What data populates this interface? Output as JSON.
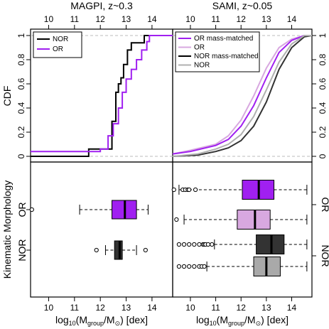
{
  "titles": {
    "magpi": "MAGPI, z~0.3",
    "sami": "SAMI, z~0.05"
  },
  "labels": {
    "cdf": "CDF",
    "kin": "Kinematic Morphology",
    "x_prefix": "log",
    "x_sub": "10",
    "x_mid": "(M",
    "x_sub2": "group",
    "x_sep": "/M",
    "x_sun": "⊙",
    "x_suffix": ") [dex]"
  },
  "categories": {
    "or": "OR",
    "nor": "NOR"
  },
  "legends": {
    "magpi": [
      "NOR",
      "OR"
    ],
    "sami": [
      "OR mass-matched",
      "OR",
      "NOR mass-matched",
      "NOR"
    ]
  },
  "colors": {
    "or": "#a020f0",
    "or_mm": "#d8a8e0",
    "nor": "#000000",
    "nor_mm": "#333333",
    "nor_sami": "#b0b0b0"
  },
  "chart_data": [
    {
      "type": "line",
      "panel": "magpi-cdf",
      "xlim": [
        9.3,
        14.8
      ],
      "ylim": [
        0,
        1
      ],
      "x_ticks": [
        10,
        11,
        12,
        13,
        14
      ],
      "y_ticks": [
        0,
        0.2,
        0.4,
        0.6,
        0.8,
        1
      ],
      "series": [
        {
          "name": "NOR",
          "color": "#000000",
          "x": [
            9.3,
            11.55,
            11.55,
            12.45,
            12.6,
            12.7,
            12.8,
            12.9,
            13.05,
            13.2,
            13.4,
            13.65,
            13.7,
            14.8
          ],
          "y": [
            0,
            0,
            0.06,
            0.29,
            0.53,
            0.6,
            0.65,
            0.76,
            0.88,
            0.94,
            0.94,
            0.94,
            1.0,
            1.0
          ]
        },
        {
          "name": "OR",
          "color": "#a020f0",
          "x": [
            9.3,
            12.0,
            12.3,
            12.5,
            12.7,
            12.85,
            13.0,
            13.2,
            13.4,
            13.6,
            13.8,
            13.9,
            14.8
          ],
          "y": [
            0.04,
            0.06,
            0.17,
            0.27,
            0.4,
            0.53,
            0.64,
            0.72,
            0.8,
            0.88,
            0.95,
            1.0,
            1.0
          ]
        }
      ]
    },
    {
      "type": "line",
      "panel": "sami-cdf",
      "xlim": [
        9.3,
        14.8
      ],
      "ylim": [
        0,
        1
      ],
      "x_ticks": [
        10,
        11,
        12,
        13,
        14
      ],
      "y_ticks": [
        0,
        0.2,
        0.4,
        0.6,
        0.8,
        1
      ],
      "series": [
        {
          "name": "OR mass-matched",
          "color": "#d8a8e0",
          "x": [
            9.3,
            10.0,
            11.0,
            11.5,
            12.0,
            12.5,
            13.0,
            13.5,
            14.0,
            14.5,
            14.8
          ],
          "y": [
            0.02,
            0.05,
            0.1,
            0.17,
            0.3,
            0.5,
            0.73,
            0.9,
            0.97,
            1.0,
            1.0
          ]
        },
        {
          "name": "OR",
          "color": "#a020f0",
          "x": [
            9.3,
            10.0,
            11.0,
            11.5,
            12.0,
            12.5,
            13.0,
            13.5,
            14.0,
            14.5,
            14.8
          ],
          "y": [
            0.02,
            0.04,
            0.09,
            0.14,
            0.25,
            0.42,
            0.65,
            0.86,
            0.96,
            1.0,
            1.0
          ]
        },
        {
          "name": "NOR mass-matched",
          "color": "#333333",
          "x": [
            9.3,
            10.3,
            11.0,
            11.5,
            12.0,
            12.5,
            13.0,
            13.5,
            14.0,
            14.5,
            14.8
          ],
          "y": [
            0.0,
            0.01,
            0.04,
            0.07,
            0.13,
            0.25,
            0.45,
            0.72,
            0.9,
            0.99,
            1.0
          ]
        },
        {
          "name": "NOR",
          "color": "#b0b0b0",
          "x": [
            9.3,
            10.3,
            11.0,
            11.5,
            12.0,
            12.5,
            13.0,
            13.5,
            14.0,
            14.5,
            14.8
          ],
          "y": [
            0.0,
            0.02,
            0.06,
            0.1,
            0.18,
            0.33,
            0.55,
            0.78,
            0.93,
            1.0,
            1.0
          ]
        }
      ]
    },
    {
      "type": "box",
      "panel": "magpi-box",
      "xlim": [
        9.3,
        14.8
      ],
      "boxes": [
        {
          "category": "OR",
          "color": "#a020f0",
          "whisker": [
            11.2,
            13.85
          ],
          "q1": 12.45,
          "median": 12.95,
          "q3": 13.4,
          "outliers": [
            9.35
          ]
        },
        {
          "category": "NOR",
          "color": "#333333",
          "whisker": [
            12.2,
            13.4
          ],
          "q1": 12.55,
          "median": 12.75,
          "q3": 12.85,
          "outliers": [
            11.85,
            13.75
          ]
        }
      ]
    },
    {
      "type": "box",
      "panel": "sami-box",
      "xlim": [
        9.3,
        14.8
      ],
      "boxes": [
        {
          "category": "OR mass-matched",
          "color": "#a020f0",
          "whisker": [
            9.55,
            14.6
          ],
          "q1": 12.05,
          "median": 12.7,
          "q3": 13.3,
          "outliers": [
            9.35,
            9.7,
            9.8,
            9.9,
            9.95,
            10.2
          ]
        },
        {
          "category": "OR",
          "color": "#d8a8e0",
          "whisker": [
            9.75,
            14.6
          ],
          "q1": 11.85,
          "median": 12.55,
          "q3": 13.15,
          "outliers": [
            9.45
          ]
        },
        {
          "category": "NOR mass-matched",
          "color": "#333333",
          "whisker": [
            10.95,
            14.6
          ],
          "q1": 12.6,
          "median": 13.2,
          "q3": 13.7,
          "outliers": [
            9.55,
            9.75,
            9.95,
            10.15,
            10.35,
            10.5,
            10.55,
            10.6,
            10.7,
            10.85
          ]
        },
        {
          "category": "NOR",
          "color": "#a9a9a9",
          "whisker": [
            10.65,
            14.6
          ],
          "q1": 12.5,
          "median": 13.0,
          "q3": 13.55,
          "outliers": [
            9.55,
            9.75,
            9.95,
            10.15,
            10.35,
            10.45,
            10.55
          ]
        }
      ]
    }
  ]
}
